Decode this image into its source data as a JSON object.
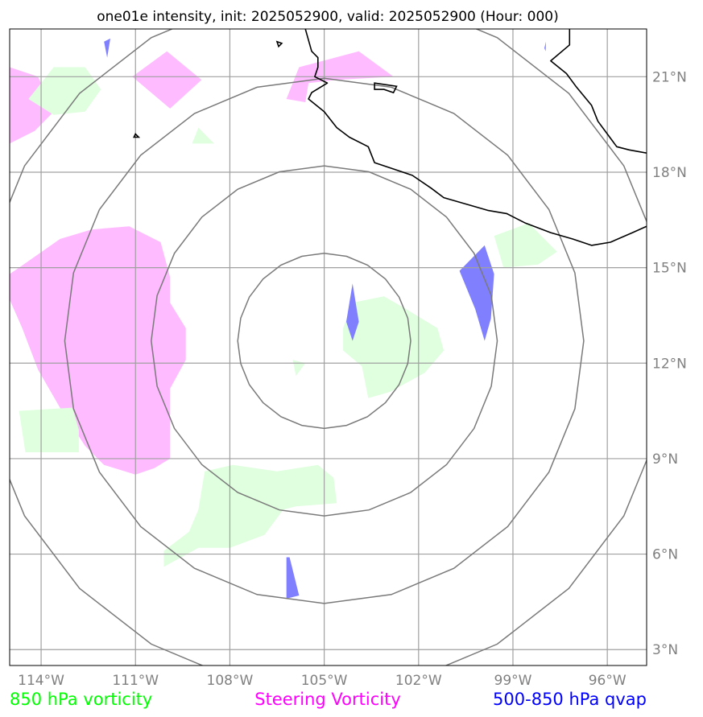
{
  "title": "one01e intensity, init: 2025052900, valid: 2025052900 (Hour: 000)",
  "map": {
    "lon_range": [
      -115,
      -94.75
    ],
    "lat_range": [
      2.5,
      22.5
    ],
    "lon_ticks": [
      {
        "value": -114,
        "label": "114°W"
      },
      {
        "value": -111,
        "label": "111°W"
      },
      {
        "value": -108,
        "label": "108°W"
      },
      {
        "value": -105,
        "label": "105°W"
      },
      {
        "value": -102,
        "label": "102°W"
      },
      {
        "value": -99,
        "label": "99°W"
      },
      {
        "value": -96,
        "label": "96°W"
      }
    ],
    "lat_ticks": [
      {
        "value": 3,
        "label": "3°N"
      },
      {
        "value": 6,
        "label": "6°N"
      },
      {
        "value": 9,
        "label": "9°N"
      },
      {
        "value": 12,
        "label": "12°N"
      },
      {
        "value": 15,
        "label": "15°N"
      },
      {
        "value": 18,
        "label": "18°N"
      },
      {
        "value": 21,
        "label": "21°N"
      }
    ],
    "center": {
      "lon": -105,
      "lat": 12.7
    },
    "range_rings_deg": [
      2.75,
      5.5,
      8.25,
      11.0
    ]
  },
  "legend": {
    "vort850": {
      "label": "850 hPa vorticity",
      "color": "#00ff00"
    },
    "steering": {
      "label": "Steering Vorticity",
      "color": "#ff00ff"
    },
    "qvap": {
      "label": "500-850 hPa qvap",
      "color": "#0000ff"
    }
  },
  "fills": {
    "vort850_color": "#dfffdf",
    "steering_color": "#ffbbff",
    "qvap_color": "#8080ff"
  },
  "regions": {
    "steering": [
      [
        [
          -115,
          21.3
        ],
        [
          -114.1,
          21.0
        ],
        [
          -113.6,
          19.9
        ],
        [
          -114.2,
          19.3
        ],
        [
          -115,
          18.9
        ]
      ],
      [
        [
          -111.1,
          21.0
        ],
        [
          -110.0,
          21.8
        ],
        [
          -108.9,
          20.9
        ],
        [
          -109.9,
          20.0
        ]
      ],
      [
        [
          -106.2,
          20.3
        ],
        [
          -105.8,
          21.3
        ],
        [
          -103.9,
          21.8
        ],
        [
          -102.8,
          21.0
        ],
        [
          -104.6,
          20.9
        ],
        [
          -105.5,
          20.8
        ],
        [
          -105.6,
          20.2
        ]
      ],
      [
        [
          -114.7,
          15.0
        ],
        [
          -113.4,
          15.9
        ],
        [
          -112.4,
          16.2
        ],
        [
          -111.2,
          16.3
        ],
        [
          -110.2,
          15.8
        ],
        [
          -109.9,
          14.7
        ],
        [
          -109.9,
          13.9
        ],
        [
          -109.4,
          13.1
        ],
        [
          -109.4,
          12.1
        ],
        [
          -109.9,
          11.2
        ],
        [
          -109.9,
          10.0
        ],
        [
          -109.9,
          9.0
        ],
        [
          -110.4,
          8.7
        ],
        [
          -111.0,
          8.5
        ],
        [
          -112.0,
          8.8
        ],
        [
          -112.6,
          9.4
        ],
        [
          -113.4,
          10.6
        ],
        [
          -114.1,
          11.8
        ],
        [
          -114.6,
          13.1
        ],
        [
          -115,
          14.0
        ],
        [
          -115,
          14.8
        ]
      ]
    ],
    "vort850": [
      [
        [
          -114.4,
          20.3
        ],
        [
          -113.6,
          21.3
        ],
        [
          -112.6,
          21.3
        ],
        [
          -112.1,
          20.6
        ],
        [
          -112.6,
          19.9
        ],
        [
          -113.6,
          19.8
        ]
      ],
      [
        [
          -109.2,
          18.9
        ],
        [
          -109.0,
          19.4
        ],
        [
          -108.5,
          18.9
        ]
      ],
      [
        [
          -104.1,
          13.9
        ],
        [
          -103.1,
          14.1
        ],
        [
          -102.4,
          13.7
        ],
        [
          -101.4,
          13.1
        ],
        [
          -101.2,
          12.4
        ],
        [
          -101.8,
          11.7
        ],
        [
          -102.9,
          11.1
        ],
        [
          -103.6,
          10.9
        ],
        [
          -103.8,
          11.9
        ],
        [
          -104.4,
          12.4
        ],
        [
          -104.4,
          13.1
        ]
      ],
      [
        [
          -106.0,
          12.1
        ],
        [
          -105.6,
          12.0
        ],
        [
          -105.9,
          11.6
        ]
      ],
      [
        [
          -99.6,
          16.0
        ],
        [
          -98.5,
          16.4
        ],
        [
          -97.6,
          15.5
        ],
        [
          -98.2,
          15.1
        ],
        [
          -99.3,
          15.0
        ]
      ],
      [
        [
          -114.7,
          10.5
        ],
        [
          -113.0,
          10.6
        ],
        [
          -112.8,
          9.9
        ],
        [
          -112.8,
          9.2
        ],
        [
          -114.5,
          9.2
        ]
      ],
      [
        [
          -108.8,
          8.6
        ],
        [
          -107.9,
          8.8
        ],
        [
          -106.5,
          8.6
        ],
        [
          -105.2,
          8.8
        ],
        [
          -104.7,
          8.4
        ],
        [
          -104.6,
          7.6
        ],
        [
          -105.9,
          7.5
        ],
        [
          -106.3,
          7.4
        ],
        [
          -106.9,
          6.6
        ],
        [
          -108.0,
          6.2
        ],
        [
          -109.0,
          6.2
        ],
        [
          -110.1,
          5.6
        ],
        [
          -110.1,
          6.1
        ],
        [
          -109.3,
          6.7
        ],
        [
          -109.0,
          7.4
        ]
      ]
    ],
    "qvap": [
      [
        [
          -112.0,
          22.1
        ],
        [
          -111.9,
          21.6
        ],
        [
          -111.8,
          22.2
        ]
      ],
      [
        [
          -98.0,
          21.9
        ],
        [
          -97.96,
          21.8
        ],
        [
          -97.95,
          22.1
        ]
      ],
      [
        [
          -104.1,
          14.5
        ],
        [
          -103.9,
          13.3
        ],
        [
          -104.1,
          12.7
        ],
        [
          -104.3,
          13.3
        ]
      ],
      [
        [
          -100.7,
          14.9
        ],
        [
          -99.9,
          15.7
        ],
        [
          -99.6,
          14.8
        ],
        [
          -99.7,
          13.4
        ],
        [
          -99.9,
          12.7
        ],
        [
          -100.2,
          13.7
        ]
      ],
      [
        [
          -106.1,
          5.9
        ],
        [
          -105.8,
          4.7
        ],
        [
          -106.2,
          4.6
        ],
        [
          -106.2,
          5.9
        ]
      ]
    ]
  },
  "coastline": [
    [
      [
        -105.6,
        22.5
      ],
      [
        -105.4,
        21.8
      ],
      [
        -105.2,
        21.6
      ],
      [
        -105.2,
        21.3
      ],
      [
        -105.3,
        21.0
      ],
      [
        -104.9,
        20.8
      ],
      [
        -105.4,
        20.5
      ],
      [
        -105.5,
        20.3
      ],
      [
        -105.0,
        19.9
      ],
      [
        -104.6,
        19.4
      ],
      [
        -104.2,
        19.1
      ],
      [
        -103.6,
        18.8
      ],
      [
        -103.4,
        18.3
      ],
      [
        -102.8,
        18.1
      ],
      [
        -102.2,
        17.9
      ],
      [
        -101.6,
        17.5
      ],
      [
        -101.2,
        17.2
      ],
      [
        -100.5,
        17.0
      ],
      [
        -99.8,
        16.8
      ],
      [
        -99.2,
        16.7
      ],
      [
        -98.6,
        16.4
      ],
      [
        -97.8,
        16.1
      ],
      [
        -97.1,
        15.9
      ],
      [
        -96.5,
        15.7
      ],
      [
        -95.9,
        15.8
      ],
      [
        -95.2,
        16.1
      ],
      [
        -94.75,
        16.3
      ]
    ],
    [
      [
        -97.2,
        22.5
      ],
      [
        -97.2,
        22.0
      ],
      [
        -97.8,
        21.5
      ],
      [
        -97.3,
        21.1
      ],
      [
        -97.0,
        20.7
      ],
      [
        -96.5,
        20.1
      ],
      [
        -96.3,
        19.6
      ],
      [
        -96.0,
        19.2
      ],
      [
        -95.7,
        18.8
      ],
      [
        -95.3,
        18.7
      ],
      [
        -94.75,
        18.6
      ]
    ]
  ],
  "islands": [
    [
      [
        -106.5,
        22.1
      ],
      [
        -106.35,
        22.05
      ],
      [
        -106.45,
        21.95
      ]
    ],
    [
      [
        -103.4,
        20.8
      ],
      [
        -102.7,
        20.7
      ],
      [
        -102.8,
        20.5
      ],
      [
        -103.1,
        20.6
      ],
      [
        -103.4,
        20.6
      ]
    ],
    [
      [
        -111.0,
        19.2
      ],
      [
        -110.9,
        19.1
      ],
      [
        -111.05,
        19.1
      ]
    ]
  ]
}
